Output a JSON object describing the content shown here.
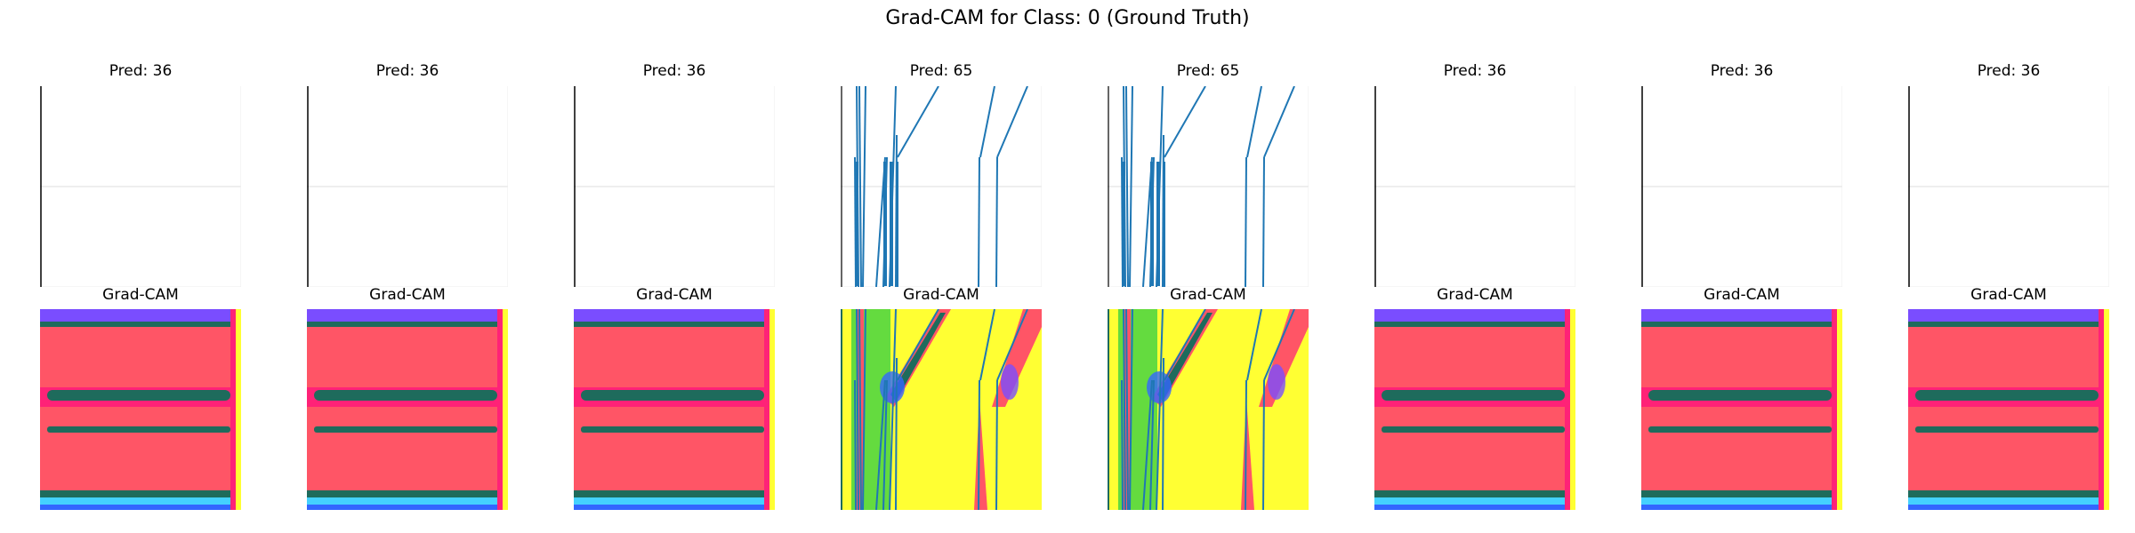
{
  "figure": {
    "title": "Grad-CAM for Class: 0 (Ground Truth)"
  },
  "colors": {
    "signal_line": "#1f77b4",
    "axis_line": "#000000",
    "grid_line": "#dcdcdc",
    "cam_red": "#ff5566",
    "cam_pink": "#ff2277",
    "cam_teal": "#1e6b5c",
    "cam_yellow": "#ffff33",
    "cam_purple": "#7a4dff",
    "cam_cyan": "#44d1ff",
    "cam_green": "#22cc44",
    "cam_blue": "#3366ff"
  },
  "chart_data": [
    {
      "type": "line",
      "panel": 1,
      "row": "prediction",
      "title": "Pred: 36",
      "signal": "flat",
      "cam_title": "Grad-CAM",
      "cam_pattern": "banded"
    },
    {
      "type": "line",
      "panel": 2,
      "row": "prediction",
      "title": "Pred: 36",
      "signal": "flat",
      "cam_title": "Grad-CAM",
      "cam_pattern": "banded"
    },
    {
      "type": "line",
      "panel": 3,
      "row": "prediction",
      "title": "Pred: 36",
      "signal": "flat",
      "cam_title": "Grad-CAM",
      "cam_pattern": "banded"
    },
    {
      "type": "line",
      "panel": 4,
      "row": "prediction",
      "title": "Pred: 65",
      "signal": "spiky",
      "cam_title": "Grad-CAM",
      "cam_pattern": "yellow-spiky"
    },
    {
      "type": "line",
      "panel": 5,
      "row": "prediction",
      "title": "Pred: 65",
      "signal": "spiky",
      "cam_title": "Grad-CAM",
      "cam_pattern": "yellow-spiky"
    },
    {
      "type": "line",
      "panel": 6,
      "row": "prediction",
      "title": "Pred: 36",
      "signal": "flat",
      "cam_title": "Grad-CAM",
      "cam_pattern": "banded"
    },
    {
      "type": "line",
      "panel": 7,
      "row": "prediction",
      "title": "Pred: 36",
      "signal": "flat",
      "cam_title": "Grad-CAM",
      "cam_pattern": "banded"
    },
    {
      "type": "line",
      "panel": 8,
      "row": "prediction",
      "title": "Pred: 36",
      "signal": "flat",
      "cam_title": "Grad-CAM",
      "cam_pattern": "banded"
    }
  ]
}
